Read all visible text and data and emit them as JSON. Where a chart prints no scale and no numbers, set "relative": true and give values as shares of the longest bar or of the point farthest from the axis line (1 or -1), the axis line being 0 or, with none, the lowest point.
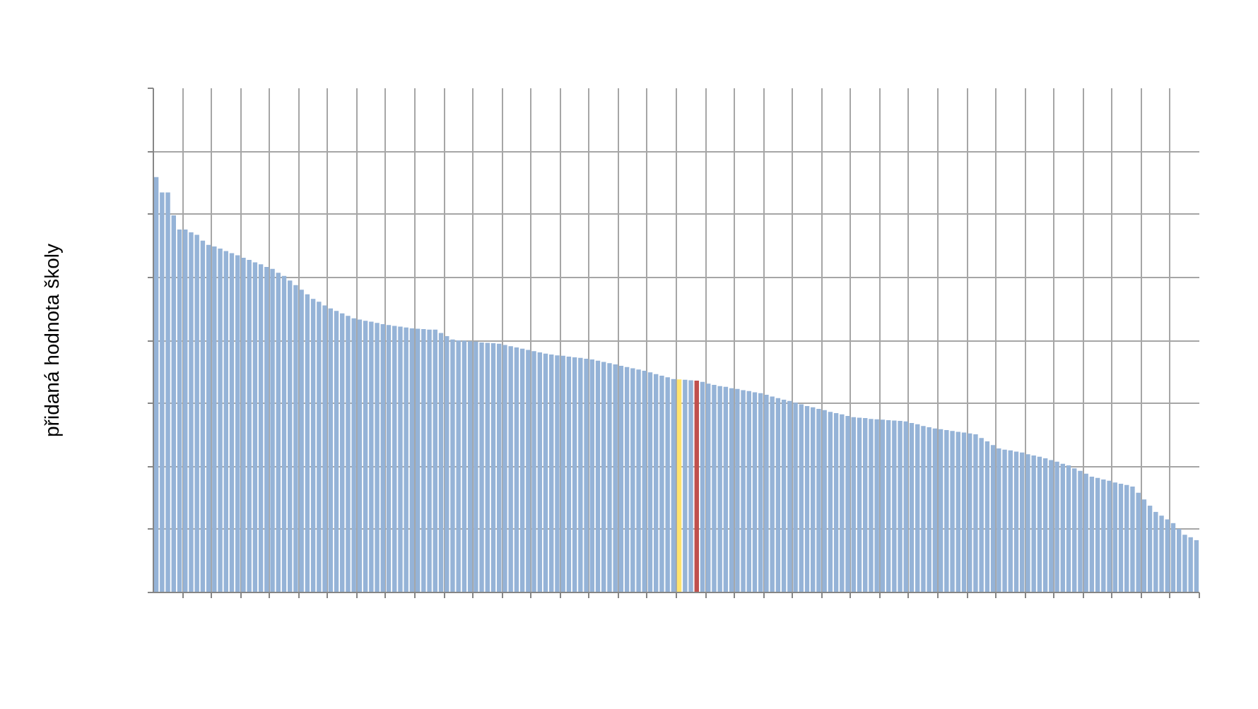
{
  "chart_data": {
    "type": "bar",
    "ylabel": "přidaná hodnota školy",
    "relative": true,
    "grid": true,
    "tick_labels": false,
    "categories": [
      null,
      null,
      null,
      null,
      null,
      null,
      null,
      null,
      null,
      null,
      null,
      null,
      null,
      null,
      null,
      null,
      null,
      null,
      null,
      null,
      null,
      null,
      null,
      null,
      null,
      null,
      null,
      null,
      null,
      null,
      null,
      null,
      null,
      null,
      null,
      null,
      null,
      null,
      null,
      null,
      null,
      null,
      null,
      null,
      null,
      null,
      null,
      null,
      null,
      null,
      null,
      null,
      null,
      null,
      null,
      null,
      null,
      null,
      null,
      null,
      null,
      null,
      null,
      null,
      null,
      null,
      null,
      null,
      null,
      null,
      null,
      null,
      null,
      null,
      null,
      null,
      null,
      null,
      null,
      null,
      null,
      null,
      null,
      null,
      null,
      null,
      null,
      null,
      null,
      null,
      null,
      null,
      null,
      null,
      null,
      null,
      null,
      null,
      null,
      null,
      null,
      null,
      null,
      null,
      null,
      null,
      null,
      null,
      null,
      null,
      null,
      null,
      null,
      null,
      null,
      null,
      null,
      null,
      null,
      null,
      null,
      null,
      null,
      null,
      null,
      null,
      null,
      null,
      null,
      null,
      null,
      null,
      null,
      null,
      null,
      null,
      null,
      null,
      null,
      null,
      null,
      null,
      null,
      null,
      null,
      null,
      null,
      null,
      null,
      null,
      null,
      null,
      null,
      null,
      null,
      null,
      null,
      null,
      null,
      null,
      null,
      null,
      null,
      null,
      null,
      null,
      null,
      null,
      null,
      null,
      null,
      null,
      null,
      null,
      null,
      null,
      null,
      null,
      null,
      null
    ],
    "values": [
      1.0,
      0.963,
      0.963,
      0.908,
      0.874,
      0.874,
      0.867,
      0.861,
      0.847,
      0.837,
      0.833,
      0.828,
      0.822,
      0.817,
      0.812,
      0.806,
      0.801,
      0.795,
      0.79,
      0.784,
      0.779,
      0.77,
      0.762,
      0.751,
      0.74,
      0.729,
      0.718,
      0.707,
      0.7,
      0.691,
      0.684,
      0.678,
      0.672,
      0.666,
      0.66,
      0.657,
      0.654,
      0.652,
      0.649,
      0.646,
      0.644,
      0.642,
      0.64,
      0.638,
      0.636,
      0.635,
      0.634,
      0.633,
      0.633,
      0.625,
      0.617,
      0.609,
      0.607,
      0.606,
      0.605,
      0.604,
      0.602,
      0.601,
      0.6,
      0.599,
      0.596,
      0.593,
      0.59,
      0.587,
      0.584,
      0.581,
      0.578,
      0.575,
      0.573,
      0.571,
      0.57,
      0.568,
      0.566,
      0.565,
      0.563,
      0.561,
      0.558,
      0.555,
      0.552,
      0.549,
      0.546,
      0.543,
      0.54,
      0.537,
      0.534,
      0.53,
      0.526,
      0.522,
      0.518,
      0.514,
      0.513,
      0.512,
      0.511,
      0.51,
      0.507,
      0.503,
      0.5,
      0.497,
      0.495,
      0.492,
      0.49,
      0.487,
      0.485,
      0.482,
      0.48,
      0.476,
      0.472,
      0.468,
      0.464,
      0.461,
      0.457,
      0.453,
      0.449,
      0.446,
      0.442,
      0.439,
      0.435,
      0.432,
      0.429,
      0.425,
      0.422,
      0.421,
      0.42,
      0.418,
      0.417,
      0.416,
      0.415,
      0.414,
      0.413,
      0.412,
      0.408,
      0.405,
      0.401,
      0.398,
      0.395,
      0.393,
      0.391,
      0.389,
      0.387,
      0.385,
      0.383,
      0.381,
      0.372,
      0.364,
      0.355,
      0.347,
      0.344,
      0.342,
      0.339,
      0.337,
      0.333,
      0.33,
      0.327,
      0.323,
      0.319,
      0.315,
      0.31,
      0.306,
      0.299,
      0.293,
      0.286,
      0.279,
      0.276,
      0.272,
      0.269,
      0.265,
      0.262,
      0.259,
      0.255,
      0.24,
      0.224,
      0.209,
      0.194,
      0.185,
      0.176,
      0.167,
      0.153,
      0.139,
      0.133,
      0.126
    ],
    "colors": [
      "#95b3d7",
      "#95b3d7",
      "#95b3d7",
      "#95b3d7",
      "#95b3d7",
      "#95b3d7",
      "#95b3d7",
      "#95b3d7",
      "#95b3d7",
      "#95b3d7",
      "#95b3d7",
      "#95b3d7",
      "#95b3d7",
      "#95b3d7",
      "#95b3d7",
      "#95b3d7",
      "#95b3d7",
      "#95b3d7",
      "#95b3d7",
      "#95b3d7",
      "#95b3d7",
      "#95b3d7",
      "#95b3d7",
      "#95b3d7",
      "#95b3d7",
      "#95b3d7",
      "#95b3d7",
      "#95b3d7",
      "#95b3d7",
      "#95b3d7",
      "#95b3d7",
      "#95b3d7",
      "#95b3d7",
      "#95b3d7",
      "#95b3d7",
      "#95b3d7",
      "#95b3d7",
      "#95b3d7",
      "#95b3d7",
      "#95b3d7",
      "#95b3d7",
      "#95b3d7",
      "#95b3d7",
      "#95b3d7",
      "#95b3d7",
      "#95b3d7",
      "#95b3d7",
      "#95b3d7",
      "#95b3d7",
      "#95b3d7",
      "#95b3d7",
      "#95b3d7",
      "#95b3d7",
      "#95b3d7",
      "#95b3d7",
      "#95b3d7",
      "#95b3d7",
      "#95b3d7",
      "#95b3d7",
      "#95b3d7",
      "#95b3d7",
      "#95b3d7",
      "#95b3d7",
      "#95b3d7",
      "#95b3d7",
      "#95b3d7",
      "#95b3d7",
      "#95b3d7",
      "#95b3d7",
      "#95b3d7",
      "#95b3d7",
      "#95b3d7",
      "#95b3d7",
      "#95b3d7",
      "#95b3d7",
      "#95b3d7",
      "#95b3d7",
      "#95b3d7",
      "#95b3d7",
      "#95b3d7",
      "#95b3d7",
      "#95b3d7",
      "#95b3d7",
      "#95b3d7",
      "#95b3d7",
      "#95b3d7",
      "#95b3d7",
      "#95b3d7",
      "#95b3d7",
      "#95b3d7",
      "#ffe36e",
      "#95b3d7",
      "#95b3d7",
      "#c0504d",
      "#95b3d7",
      "#95b3d7",
      "#95b3d7",
      "#95b3d7",
      "#95b3d7",
      "#95b3d7",
      "#95b3d7",
      "#95b3d7",
      "#95b3d7",
      "#95b3d7",
      "#95b3d7",
      "#95b3d7",
      "#95b3d7",
      "#95b3d7",
      "#95b3d7",
      "#95b3d7",
      "#95b3d7",
      "#95b3d7",
      "#95b3d7",
      "#95b3d7",
      "#95b3d7",
      "#95b3d7",
      "#95b3d7",
      "#95b3d7",
      "#95b3d7",
      "#95b3d7",
      "#95b3d7",
      "#95b3d7",
      "#95b3d7",
      "#95b3d7",
      "#95b3d7",
      "#95b3d7",
      "#95b3d7",
      "#95b3d7",
      "#95b3d7",
      "#95b3d7",
      "#95b3d7",
      "#95b3d7",
      "#95b3d7",
      "#95b3d7",
      "#95b3d7",
      "#95b3d7",
      "#95b3d7",
      "#95b3d7",
      "#95b3d7",
      "#95b3d7",
      "#95b3d7",
      "#95b3d7",
      "#95b3d7",
      "#95b3d7",
      "#95b3d7",
      "#95b3d7",
      "#95b3d7",
      "#95b3d7",
      "#95b3d7",
      "#95b3d7",
      "#95b3d7",
      "#95b3d7",
      "#95b3d7",
      "#95b3d7",
      "#95b3d7",
      "#95b3d7",
      "#95b3d7",
      "#95b3d7",
      "#95b3d7",
      "#95b3d7",
      "#95b3d7",
      "#95b3d7",
      "#95b3d7",
      "#95b3d7",
      "#95b3d7",
      "#95b3d7",
      "#95b3d7",
      "#95b3d7",
      "#95b3d7",
      "#95b3d7",
      "#95b3d7",
      "#95b3d7",
      "#95b3d7",
      "#95b3d7",
      "#95b3d7",
      "#95b3d7",
      "#95b3d7",
      "#95b3d7",
      "#95b3d7",
      "#95b3d7"
    ]
  }
}
